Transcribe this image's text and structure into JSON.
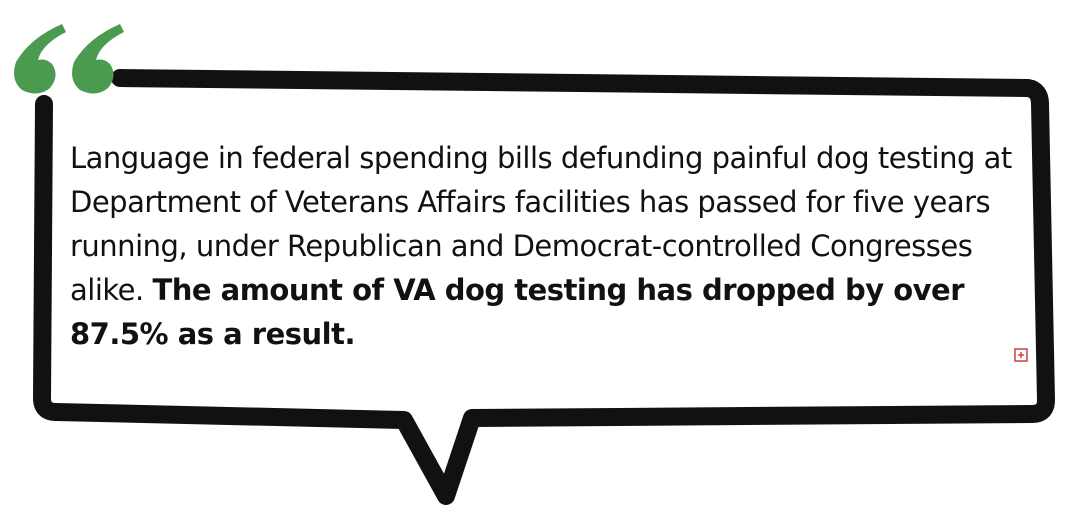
{
  "quote": {
    "text": "Language in federal spending bills defunding painful dog testing at Department of Veterans Affairs facilities has passed for five years running, under Republican and Democrat-controlled Congresses alike.",
    "emphasis": "The amount of VA dog testing has dropped by over 87.5% as a result."
  }
}
